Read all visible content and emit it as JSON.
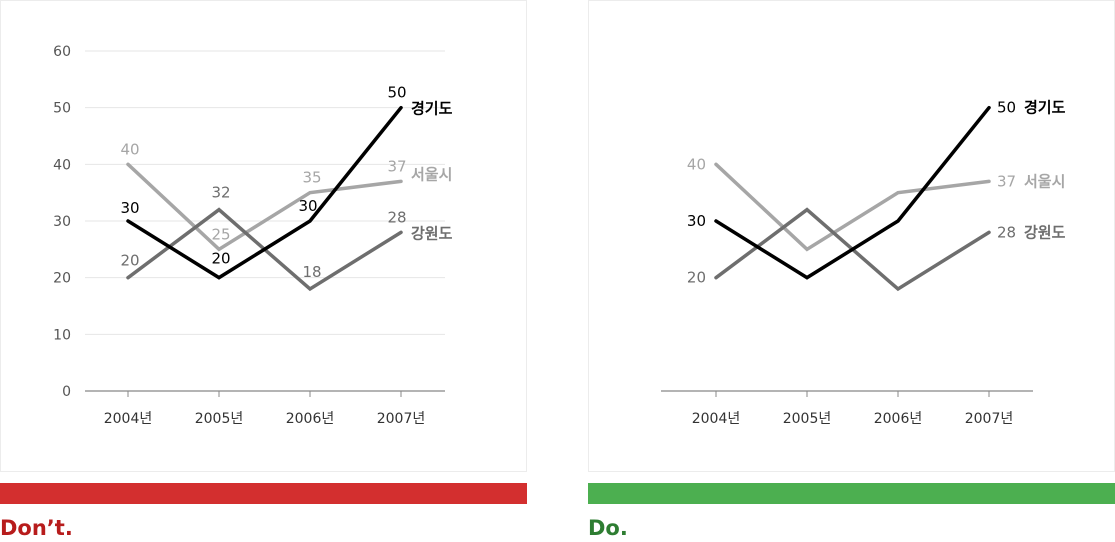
{
  "colors": {
    "dont": "#d32f2f",
    "do": "#4caf50",
    "dont_text": "#b71c1c",
    "do_text": "#2e7d32",
    "axis": "#888888",
    "grid": "#e6e6e6",
    "tick_text": "#555555"
  },
  "captions": {
    "dont": "Don’t.",
    "do": "Do."
  },
  "chart_data": [
    {
      "type": "line",
      "variant": "dont",
      "title": "",
      "xlabel": "",
      "ylabel": "",
      "categories": [
        "2004년",
        "2005년",
        "2006년",
        "2007년"
      ],
      "yticks": [
        "0",
        "10",
        "20",
        "30",
        "40",
        "50",
        "60"
      ],
      "ylim": [
        0,
        60
      ],
      "grid": true,
      "legend": "inline-right",
      "series": [
        {
          "name": "서울시",
          "values": [
            40,
            25,
            35,
            37
          ],
          "value_labels": [
            "40",
            "25",
            "35",
            "37"
          ],
          "color": "#a6a6a6"
        },
        {
          "name": "강원도",
          "values": [
            20,
            32,
            18,
            28
          ],
          "value_labels": [
            "20",
            "32",
            "18",
            "28"
          ],
          "color": "#6e6e6e"
        },
        {
          "name": "경기도",
          "values": [
            30,
            20,
            30,
            50
          ],
          "value_labels": [
            "30",
            "20",
            "30",
            "50"
          ],
          "color": "#000000"
        }
      ]
    },
    {
      "type": "line",
      "variant": "do",
      "title": "",
      "xlabel": "",
      "ylabel": "",
      "categories": [
        "2004년",
        "2005년",
        "2006년",
        "2007년"
      ],
      "ylim": [
        0,
        60
      ],
      "grid": false,
      "legend": "inline-right",
      "series": [
        {
          "name": "서울시",
          "values": [
            40,
            25,
            35,
            37
          ],
          "value_labels": [
            "40",
            "",
            "",
            "37"
          ],
          "color": "#a6a6a6"
        },
        {
          "name": "강원도",
          "values": [
            20,
            32,
            18,
            28
          ],
          "value_labels": [
            "20",
            "",
            "",
            "28"
          ],
          "color": "#6e6e6e"
        },
        {
          "name": "경기도",
          "values": [
            30,
            20,
            30,
            50
          ],
          "value_labels": [
            "30",
            "",
            "",
            "50"
          ],
          "color": "#000000"
        }
      ]
    }
  ]
}
